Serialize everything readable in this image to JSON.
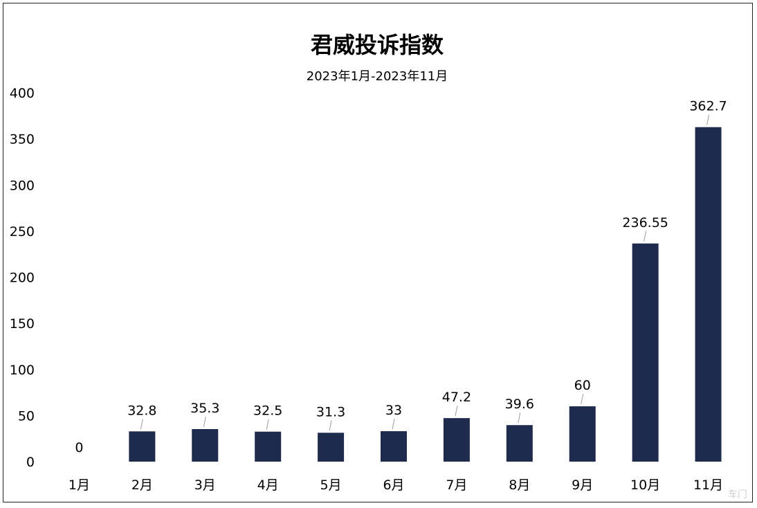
{
  "chart_data": {
    "type": "bar",
    "title": "君威投诉指数",
    "subtitle": "2023年1月-2023年11月",
    "categories": [
      "1月",
      "2月",
      "3月",
      "4月",
      "5月",
      "6月",
      "7月",
      "8月",
      "9月",
      "10月",
      "11月"
    ],
    "values": [
      0,
      32.8,
      35.3,
      32.5,
      31.3,
      33,
      47.2,
      39.6,
      60,
      236.55,
      362.7
    ],
    "data_labels": [
      "0",
      "32.8",
      "35.3",
      "32.5",
      "31.3",
      "33",
      "47.2",
      "39.6",
      "60",
      "236.55",
      "362.7"
    ],
    "ylim": [
      0,
      400
    ],
    "yticks": [
      0,
      50,
      100,
      150,
      200,
      250,
      300,
      350,
      400
    ],
    "ytick_labels": [
      "0",
      "50",
      "100",
      "150",
      "200",
      "250",
      "300",
      "350",
      "400"
    ],
    "bar_color": "#1f2b4d",
    "grid": false,
    "xlabel": "",
    "ylabel": ""
  },
  "watermark": "车门"
}
